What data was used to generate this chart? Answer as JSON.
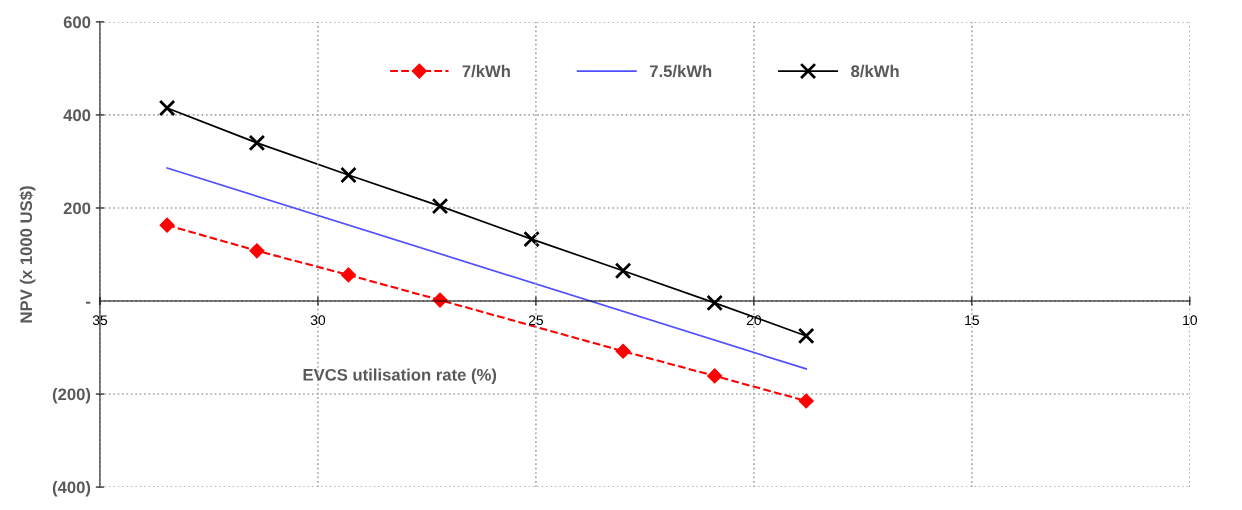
{
  "chart_data": {
    "type": "line",
    "xlabel": "EVCS utilisation rate (%)",
    "ylabel": "NPV (x 1000 US$)",
    "xlim": [
      35,
      10
    ],
    "xticks": [
      35,
      30,
      25,
      20,
      15,
      10
    ],
    "ylim": [
      -400,
      600
    ],
    "yticks": [
      600,
      400,
      200,
      {
        "value": 0,
        "label": "-"
      },
      {
        "value": -200,
        "label": "(200)"
      },
      {
        "value": -400,
        "label": "(400)"
      }
    ],
    "grid": true,
    "legend": "top",
    "series": [
      {
        "name": "7/kWh",
        "color": "#ff0000",
        "marker": "diamond",
        "line_style": "dashed",
        "x": [
          33.46,
          31.4,
          29.3,
          27.2,
          23.0,
          20.9,
          18.8
        ],
        "values": [
          163,
          108,
          56,
          2,
          -108,
          -161,
          -215
        ]
      },
      {
        "name": "7.5/kWh",
        "color": "#4f4fff",
        "marker": "none",
        "line_style": "solid",
        "x": [
          33.46,
          18.8
        ],
        "values": [
          286,
          -146
        ]
      },
      {
        "name": "8/kWh",
        "color": "#000000",
        "marker": "cross",
        "line_style": "solid",
        "x": [
          33.46,
          31.4,
          29.3,
          27.2,
          25.1,
          23.0,
          20.9,
          18.8
        ],
        "values": [
          415,
          340,
          271,
          204,
          133,
          65,
          -4,
          -75
        ]
      }
    ]
  }
}
